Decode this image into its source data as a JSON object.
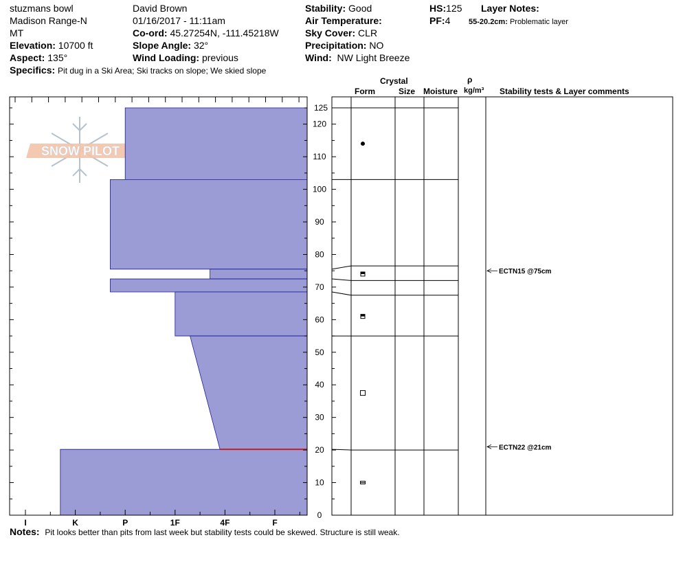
{
  "header": {
    "location": "stuzmans bowl",
    "range": "Madison Range-N",
    "state": "MT",
    "elevation_label": "Elevation:",
    "elevation": "10700 ft",
    "aspect_label": "Aspect:",
    "aspect": "135°",
    "observer": "David Brown",
    "datetime": "01/16/2017 - 11:11am",
    "coord_label": "Co-ord:",
    "coord": "45.27254N, -111.45218W",
    "slope_label": "Slope Angle:",
    "slope": "32°",
    "wind_loading_label": "Wind Loading:",
    "wind_loading": "previous",
    "stability_label": "Stability:",
    "stability": "Good",
    "air_temp_label": "Air Temperature:",
    "air_temp": "",
    "sky_label": "Sky Cover:",
    "sky": "CLR",
    "precip_label": "Precipitation:",
    "precip": "NO",
    "wind_label": "Wind:",
    "wind": "NW Light Breeze",
    "hs_label": "HS:",
    "hs": "125",
    "pf_label": "PF:",
    "pf": "4",
    "layer_notes_label": "Layer Notes:",
    "layer_note_range": "55-20.2cm:",
    "layer_note_text": "Problematic layer",
    "specifics_label": "Specifics:",
    "specifics": "Pit dug in a Ski Area; Ski tracks on slope; We skied slope"
  },
  "columns": {
    "crystal": "Crystal",
    "form": "Form",
    "size": "Size",
    "moisture": "Moisture",
    "rho": "ρ",
    "density_unit": "kg/m³",
    "stability": "Stability tests & Layer comments"
  },
  "notes_label": "Notes:",
  "notes": "Pit looks better than pits from last week but stability tests could be skewed. Structure is still weak.",
  "logo_text": "SNOW PILOT",
  "colors": {
    "layer_fill": "#9b9bd6",
    "layer_edge": "#1a1a9a",
    "problem_line": "#c0202a"
  },
  "chart_data": {
    "type": "snow-profile",
    "hardness_scale": [
      "I",
      "K",
      "P",
      "1F",
      "4F",
      "F"
    ],
    "height_ticks": [
      0,
      10,
      20,
      30,
      40,
      50,
      60,
      70,
      80,
      90,
      100,
      110,
      120,
      125
    ],
    "ylim": [
      0,
      125
    ],
    "layers": [
      {
        "top": 125,
        "bottom": 103,
        "hardness_top": 2.0,
        "hardness_bottom": 2.0,
        "form": "dot-icon",
        "form_height": 114
      },
      {
        "top": 103,
        "bottom": 75.5,
        "hardness_top": 1.7,
        "hardness_bottom": 1.7,
        "form": "",
        "form_height": null
      },
      {
        "top": 75.5,
        "bottom": 72.5,
        "hardness_top": 3.7,
        "hardness_bottom": 3.7,
        "form": "half-square-icon",
        "form_height": 74
      },
      {
        "top": 72.5,
        "bottom": 68.5,
        "hardness_top": 1.7,
        "hardness_bottom": 1.7,
        "form": "",
        "form_height": null
      },
      {
        "top": 68.5,
        "bottom": 55,
        "hardness_top": 3.0,
        "hardness_bottom": 3.0,
        "form": "half-square-icon",
        "form_height": 61
      },
      {
        "top": 55,
        "bottom": 20.2,
        "hardness_top": 3.3,
        "hardness_bottom": 3.9,
        "form": "square-icon",
        "form_height": 37.5
      },
      {
        "top": 20.2,
        "bottom": 0,
        "hardness_top": 0.7,
        "hardness_bottom": 0.7,
        "form": "rect-icon",
        "form_height": 10
      }
    ],
    "layer_boundaries": [
      125,
      103,
      76.5,
      72,
      67.5,
      55,
      20
    ],
    "problem_layer": {
      "top": 55,
      "bottom": 20.2
    },
    "stability_tests": [
      {
        "label": "ECTN15 @75cm",
        "height": 75
      },
      {
        "label": "ECTN22 @21cm",
        "height": 21
      }
    ]
  }
}
